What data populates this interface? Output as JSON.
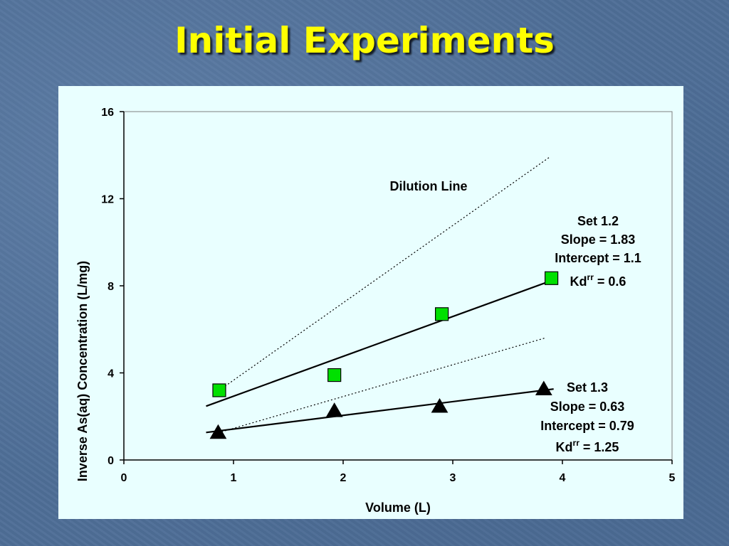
{
  "slide": {
    "title": "Initial Experiments"
  },
  "chart_data": {
    "type": "scatter",
    "title": "",
    "xlabel": "Volume (L)",
    "ylabel": "Inverse As(aq) Concentration (L/mg)",
    "xlim": [
      0,
      5
    ],
    "ylim": [
      0,
      16
    ],
    "x_ticks": [
      0,
      1,
      2,
      3,
      4,
      5
    ],
    "y_ticks": [
      0,
      4,
      8,
      12,
      16
    ],
    "grid": false,
    "legend": "none",
    "series": [
      {
        "marker": "square",
        "color": "#00e000",
        "points": [
          [
            0.87,
            3.2
          ],
          [
            1.92,
            3.9
          ],
          [
            2.9,
            6.7
          ],
          [
            3.9,
            8.35
          ]
        ],
        "trend": {
          "slope": 1.83,
          "intercept": 1.1,
          "x_range": [
            0.75,
            3.92
          ]
        },
        "annotation": {
          "set": "Set 1.2",
          "slope": "Slope = 1.83",
          "intercept": "Intercept = 1.1",
          "kd_base": "Kd",
          "kd_sup": "rr",
          "kd_value": " = 0.6"
        }
      },
      {
        "marker": "triangle",
        "color": "#000000",
        "points": [
          [
            0.86,
            1.25
          ],
          [
            1.92,
            2.25
          ],
          [
            2.88,
            2.45
          ],
          [
            3.83,
            3.25
          ]
        ],
        "trend": {
          "slope": 0.63,
          "intercept": 0.79,
          "x_range": [
            0.75,
            3.92
          ]
        },
        "annotation": {
          "set": "Set 1.3",
          "slope": "Slope = 0.63",
          "intercept": "Intercept = 0.79",
          "kd_base": "Kd",
          "kd_sup": "rr",
          "kd_value": " = 1.25"
        }
      }
    ],
    "dilution_lines": [
      {
        "label": "Dilution Line",
        "points": [
          [
            0.87,
            3.2
          ],
          [
            3.88,
            13.9
          ]
        ]
      },
      {
        "label": "",
        "points": [
          [
            0.86,
            1.25
          ],
          [
            3.84,
            5.6
          ]
        ]
      }
    ]
  }
}
